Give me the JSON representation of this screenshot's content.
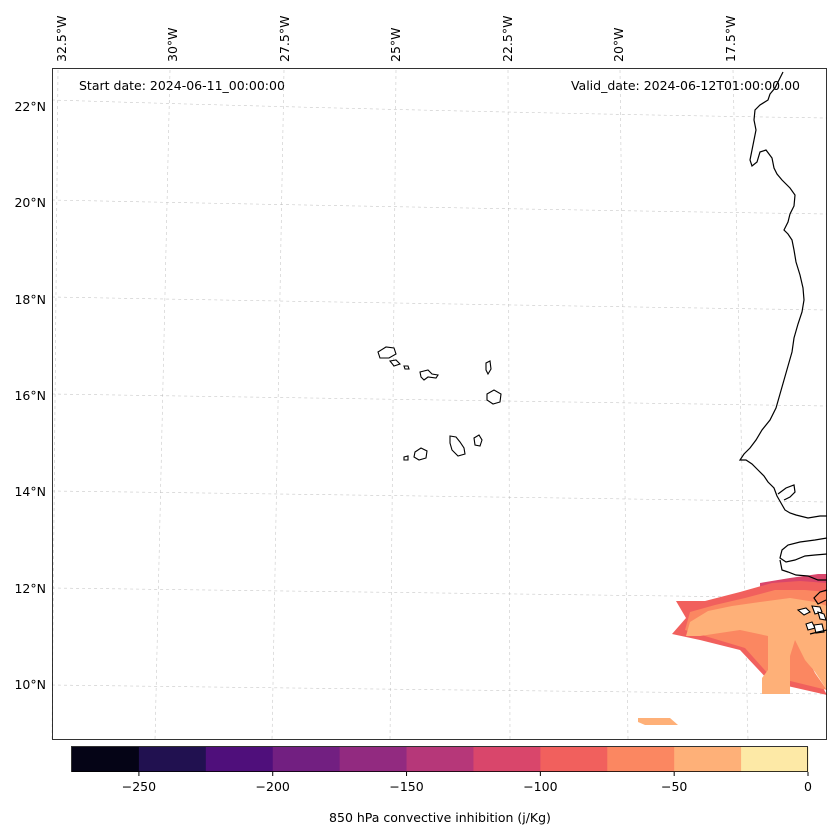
{
  "header": {
    "start_date": "Start date: 2024-06-11_00:00:00",
    "valid_date": "Valid_date: 2024-06-12T01:00:00.00"
  },
  "map": {
    "lon_labels": [
      "32.5°W",
      "30°W",
      "27.5°W",
      "25°W",
      "22.5°W",
      "20°W",
      "17.5°W"
    ],
    "lat_labels": [
      "22°N",
      "20°N",
      "18°N",
      "16°N",
      "14°N",
      "12°N",
      "10°N"
    ]
  },
  "colorbar": {
    "label": "850 hPa convective inhibition (j/Kg)",
    "ticks": [
      "−250",
      "−200",
      "−150",
      "−100",
      "−50",
      "0"
    ],
    "colors": [
      "#050416",
      "#211150",
      "#4f0f7b",
      "#721f81",
      "#922a80",
      "#b63779",
      "#d9466b",
      "#f1605d",
      "#fb8761",
      "#feb078",
      "#fde9a6"
    ]
  },
  "field_colors": {
    "weak": "#feb078",
    "moderate": "#fb8761",
    "strong": "#f1605d",
    "stronger": "#d9466b"
  }
}
